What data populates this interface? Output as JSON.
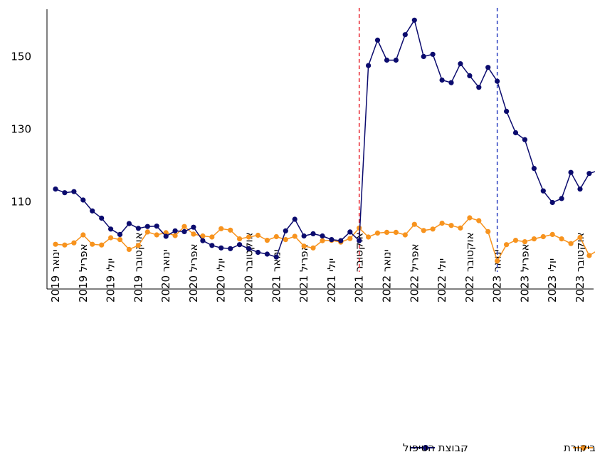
{
  "chart_data": {
    "type": "line",
    "title": "",
    "xlabel": "",
    "ylabel": "",
    "ylim": [
      86,
      163
    ],
    "yticks": [
      110,
      130,
      150
    ],
    "x_tick_labels": [
      "ינואר 2019",
      "אפריל 2019",
      "יולי 2019",
      "אוקטובר 2019",
      "ינואר 2020",
      "אפריל 2020",
      "יולי 2020",
      "אוקטובר 2020",
      "ינואר 2021",
      "אפריל 2021",
      "יולי 2021",
      "אוקטובר 2021",
      "ינואר 2022",
      "אפריל 2022",
      "יולי 2022",
      "אוקטובר 2022",
      "ינואר 2023",
      "אפריל 2023",
      "יולי 2023",
      "אוקטובר 2023"
    ],
    "x": [
      "2019-01",
      "2019-02",
      "2019-03",
      "2019-04",
      "2019-05",
      "2019-06",
      "2019-07",
      "2019-08",
      "2019-09",
      "2019-10",
      "2019-11",
      "2019-12",
      "2020-01",
      "2020-02",
      "2020-03",
      "2020-04",
      "2020-05",
      "2020-06",
      "2020-07",
      "2020-08",
      "2020-09",
      "2020-10",
      "2020-11",
      "2020-12",
      "2021-01",
      "2021-02",
      "2021-03",
      "2021-04",
      "2021-05",
      "2021-06",
      "2021-07",
      "2021-08",
      "2021-09",
      "2021-10",
      "2021-11",
      "2021-12",
      "2022-01",
      "2022-02",
      "2022-03",
      "2022-04",
      "2022-05",
      "2022-06",
      "2022-07",
      "2022-08",
      "2022-09",
      "2022-10",
      "2022-11",
      "2022-12",
      "2023-01",
      "2023-02",
      "2023-03",
      "2023-04",
      "2023-05",
      "2023-06",
      "2023-07",
      "2023-08",
      "2023-09",
      "2023-10",
      "2023-11",
      "2023-12"
    ],
    "series": [
      {
        "name": "קבוצת הטיפול",
        "color": "#0b0b6e",
        "values": [
          113.5,
          112.5,
          112.8,
          110.5,
          107.5,
          105.5,
          102.5,
          101,
          104,
          102.7,
          103.2,
          103.3,
          100.5,
          102,
          101.8,
          103,
          99.3,
          98,
          97.3,
          97.1,
          98.2,
          97.1,
          96.1,
          95.6,
          94.8,
          102,
          105.2,
          100.6,
          101.2,
          100.6,
          99.6,
          99.3,
          101.7,
          99.3,
          147.5,
          154.5,
          149,
          149,
          156,
          160,
          150,
          150.6,
          143.5,
          142.8,
          148,
          144.7,
          141.5,
          147,
          143.2,
          134.9,
          129,
          127.1,
          119.2,
          113,
          109.8,
          110.9,
          118.1,
          113.5,
          117.8,
          118.6
        ]
      },
      {
        "name": "קבוצת הביקורת",
        "color": "#f7931e",
        "values": [
          98.3,
          98.1,
          98.7,
          100.9,
          98.3,
          98.1,
          100.1,
          99.6,
          96.9,
          98,
          101.7,
          100.9,
          101.5,
          100.7,
          103.2,
          101.1,
          100.6,
          100.3,
          102.6,
          102.2,
          99.8,
          100.3,
          100.8,
          99.4,
          100.4,
          99.6,
          100.5,
          97.8,
          97.3,
          99.3,
          99.4,
          98.9,
          99.9,
          102.8,
          100.3,
          101.4,
          101.6,
          101.6,
          100.9,
          103.8,
          102.1,
          102.5,
          104.1,
          103.5,
          102.8,
          105.6,
          104.8,
          101.8,
          93.7,
          98.2,
          99.4,
          99,
          99.8,
          100.4,
          101,
          99.8,
          98.5,
          100.2,
          95.2,
          96.8
        ]
      }
    ],
    "vertical_lines": [
      {
        "x": "2021-10",
        "color": "#e8202a",
        "style": "dashed"
      },
      {
        "x": "2023-01",
        "color": "#2b3fc0",
        "style": "dashed"
      }
    ],
    "grid": false,
    "legend_position": "bottom-right"
  },
  "legend": {
    "items": [
      {
        "label": "קבוצת הביקורת",
        "color": "#f7931e"
      },
      {
        "label": "קבוצת הטיפול",
        "color": "#0b0b6e"
      }
    ]
  }
}
